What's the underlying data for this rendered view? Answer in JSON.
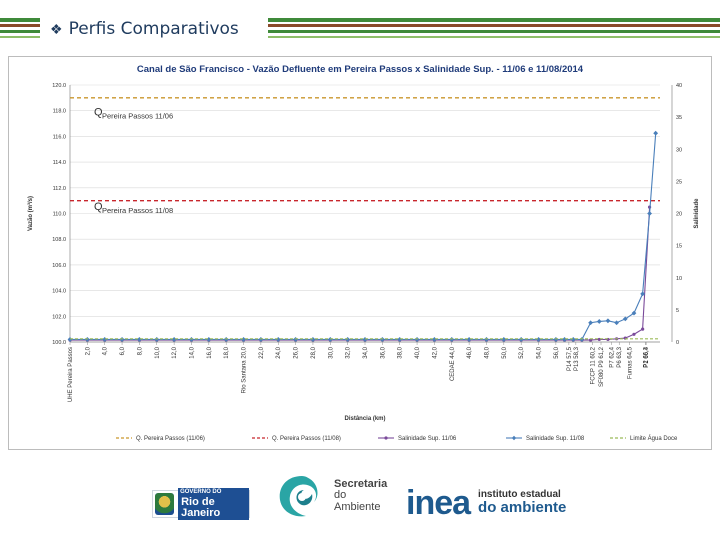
{
  "slide": {
    "title": "Perfis Comparativos",
    "bullet_icon": "diamond-bullet-icon"
  },
  "colors": {
    "stripe_green": "#3f8a3a",
    "stripe_brown": "#8a4a2a",
    "series_q_1106": "#c9962c",
    "series_q_1108": "#c8262c",
    "series_sal_1106": "#7a4a9a",
    "series_sal_1108": "#4a7fba",
    "series_limit": "#9bbb59"
  },
  "chart_data": {
    "type": "line",
    "title": "Canal de São Francisco - Vazão Defluente em Pereira Passos x Salinidade Sup. - 11/06 e 11/08/2014",
    "xlabel": "Distância (km)",
    "ylabel": "Vazão (m³/s)",
    "y2label": "Salinidade",
    "ylim": [
      100,
      120
    ],
    "y2lim": [
      0,
      40
    ],
    "yticks": [
      "100.0",
      "102.0",
      "104.0",
      "106.0",
      "108.0",
      "110.0",
      "112.0",
      "114.0",
      "116.0",
      "118.0",
      "120.0"
    ],
    "y2ticks": [
      "0",
      "5",
      "10",
      "15",
      "20",
      "25",
      "30",
      "35",
      "40"
    ],
    "categories": [
      "UHE Pereira Passos",
      "2,0",
      "4,0",
      "6,0",
      "8,0",
      "10,0",
      "12,0",
      "14,0",
      "16,0",
      "18,0",
      "Rio Santana 20,0",
      "22,0",
      "24,0",
      "26,0",
      "28,0",
      "30,0",
      "32,0",
      "34,0",
      "36,0",
      "38,0",
      "40,0",
      "42,0",
      "CEDAE 44,0",
      "46,0",
      "48,0",
      "50,0",
      "52,0",
      "54,0",
      "56,0",
      "P14 57,5",
      "P13 58,3",
      "FCCP 11 60,2",
      "SF080 P9 61,2",
      "P7 62,4",
      "P6 63,3",
      "Furnas 64,5",
      "P2 66,3",
      "P1 66,4"
    ],
    "category_positions": [
      0,
      2,
      4,
      6,
      8,
      10,
      12,
      14,
      16,
      18,
      20,
      22,
      24,
      26,
      28,
      30,
      32,
      34,
      36,
      38,
      40,
      42,
      44,
      46,
      48,
      50,
      52,
      54,
      56,
      57.5,
      58.3,
      60.2,
      61.2,
      62.4,
      63.3,
      64.5,
      66.3,
      66.4
    ],
    "annotations": [
      {
        "prefix": "Q",
        "text": "Pereira Passos 11/06"
      },
      {
        "prefix": "Q",
        "text": "Pereira Passos 11/08"
      }
    ],
    "series": [
      {
        "name": "Q. Pereira Passos (11/06)",
        "axis": "left",
        "style": "dashed",
        "value": 119.0
      },
      {
        "name": "Q. Pereira Passos (11/08)",
        "axis": "left",
        "style": "dashed",
        "value": 111.0
      },
      {
        "name": "Salinidade Sup. 11/06",
        "axis": "right",
        "x": [
          0,
          2,
          4,
          6,
          8,
          10,
          12,
          14,
          16,
          18,
          20,
          22,
          24,
          26,
          28,
          30,
          32,
          34,
          36,
          38,
          40,
          42,
          44,
          46,
          48,
          50,
          52,
          54,
          56,
          57,
          58,
          59,
          60,
          61,
          62,
          63,
          64,
          65,
          66,
          66.8
        ],
        "values": [
          0.3,
          0.3,
          0.3,
          0.3,
          0.3,
          0.3,
          0.3,
          0.3,
          0.3,
          0.3,
          0.3,
          0.3,
          0.3,
          0.3,
          0.3,
          0.3,
          0.3,
          0.3,
          0.3,
          0.3,
          0.3,
          0.3,
          0.3,
          0.3,
          0.3,
          0.3,
          0.3,
          0.3,
          0.3,
          0.3,
          0.3,
          0.3,
          0.3,
          0.4,
          0.4,
          0.5,
          0.6,
          1.2,
          2.0,
          21.0
        ]
      },
      {
        "name": "Salinidade Sup. 11/08",
        "axis": "right",
        "x": [
          0,
          2,
          4,
          6,
          8,
          10,
          12,
          14,
          16,
          18,
          20,
          22,
          24,
          26,
          28,
          30,
          32,
          34,
          36,
          38,
          40,
          42,
          44,
          46,
          48,
          50,
          52,
          54,
          56,
          57,
          58,
          59,
          60,
          61,
          62,
          63,
          64,
          65,
          66,
          66.8,
          67.5
        ],
        "values": [
          0.4,
          0.4,
          0.4,
          0.4,
          0.4,
          0.4,
          0.4,
          0.4,
          0.4,
          0.4,
          0.4,
          0.4,
          0.4,
          0.4,
          0.4,
          0.4,
          0.4,
          0.4,
          0.4,
          0.4,
          0.4,
          0.4,
          0.4,
          0.4,
          0.4,
          0.4,
          0.4,
          0.4,
          0.4,
          0.4,
          0.4,
          0.4,
          3.0,
          3.2,
          3.3,
          3.0,
          3.6,
          4.5,
          7.5,
          20.0,
          32.5
        ]
      },
      {
        "name": "Limite Água Doce",
        "axis": "right",
        "style": "dashed",
        "value": 0.5
      }
    ],
    "legend_position": "bottom"
  },
  "footer": {
    "rj_logo": {
      "small": "GOVERNO DO",
      "big": "Rio de Janeiro"
    },
    "sec_logo": {
      "line1": "Secretaria",
      "line2": "do",
      "line3": "Ambiente"
    },
    "inea_logo": {
      "word": "inea",
      "line1": "instituto estadual",
      "line2": "do ambiente"
    }
  }
}
